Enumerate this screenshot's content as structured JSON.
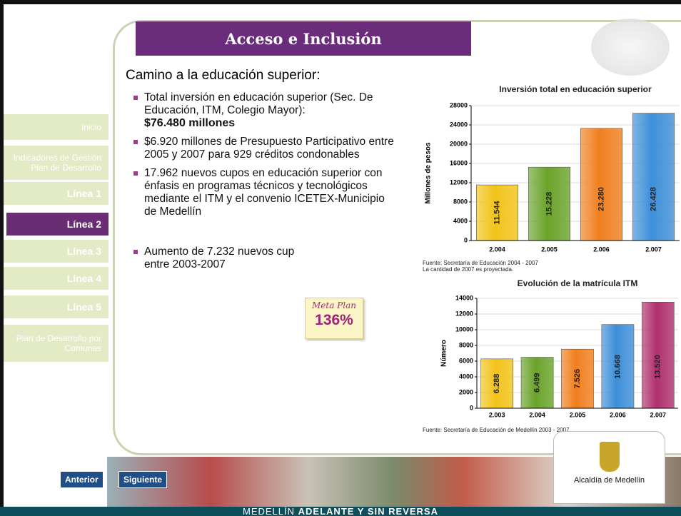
{
  "header": {
    "title": "Acceso e Inclusión"
  },
  "navigation": [
    {
      "label": "Inicio",
      "active": false
    },
    {
      "label": "Indicadores de Gestión Plan de Desarrollo",
      "active": false
    },
    {
      "label": "Línea 1",
      "active": false
    },
    {
      "label": "Línea 2",
      "active": true
    },
    {
      "label": "Línea 3",
      "active": false
    },
    {
      "label": "Línea 4",
      "active": false
    },
    {
      "label": "Línea 5",
      "active": false
    },
    {
      "label": "Plan de Desarrollo por Comunas",
      "active": false
    }
  ],
  "section": {
    "heading": "Camino a la educación superior:",
    "bullets": [
      {
        "text": "Total inversión en educación superior (Sec. De Educación, ITM, Colegio Mayor):",
        "highlight": "$76.480 millones"
      },
      {
        "text": "$6.920 millones de Presupuesto Participativo entre 2005 y 2007 para 929 créditos condonables"
      },
      {
        "text": "17.962  nuevos cupos en educación superior con énfasis en programas técnicos y tecnológicos  mediante el ITM y el convenio  ICETEX-Municipio de Medellín"
      },
      {
        "text": "Aumento de 7.232 nuevos cup entre 2003-2007"
      }
    ],
    "note": {
      "title": "Meta Plan",
      "value": "136%"
    }
  },
  "buttons": [
    "Anterior",
    "Siguiente"
  ],
  "footer": {
    "logo_caption": "Alcaldía de Medellín",
    "slogan_strong": "MEDELLÍN",
    "slogan": "ADELANTE Y SIN REVERSA"
  },
  "chart_data": [
    {
      "type": "bar",
      "title": "Inversión total en educación superior",
      "y_label": "Millones de pesos",
      "categories": [
        "2.004",
        "2.005",
        "2.006",
        "2.007"
      ],
      "values": [
        11544,
        15228,
        23280,
        26428
      ],
      "value_labels": [
        "11.544",
        "15.228",
        "23.280",
        "26.428"
      ],
      "colors": [
        "#f2c318",
        "#6aa32a",
        "#f07f1e",
        "#3d8fd8"
      ],
      "ylim": [
        0,
        28000
      ],
      "yticks": [
        0,
        4000,
        8000,
        12000,
        16000,
        20000,
        24000,
        28000
      ],
      "grid": true,
      "source": [
        "Fuente: Secretaría de Educación 2004 - 2007",
        "La cantidad de 2007 es proyectada."
      ]
    },
    {
      "type": "bar",
      "title": "Evolución de la matrícula ITM",
      "y_label": "Número",
      "categories": [
        "2.003",
        "2.004",
        "2.005",
        "2.006",
        "2.007"
      ],
      "values": [
        6288,
        6499,
        7526,
        10668,
        13520
      ],
      "value_labels": [
        "6.288",
        "6.499",
        "7.526",
        "10.668",
        "13.520"
      ],
      "colors": [
        "#f2c318",
        "#6aa32a",
        "#f07f1e",
        "#3d8fd8",
        "#b0306e"
      ],
      "ylim": [
        0,
        14000
      ],
      "yticks": [
        0,
        2000,
        4000,
        6000,
        8000,
        10000,
        12000,
        14000
      ],
      "grid": true,
      "source": [
        "Fuente: Secretaría de Educación de Medellín 2003 - 2007"
      ]
    }
  ]
}
